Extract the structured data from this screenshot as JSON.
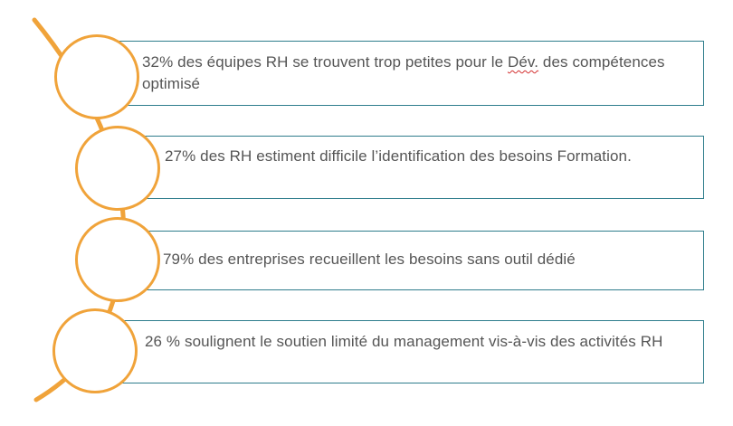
{
  "colors": {
    "accent_orange": "#f0a33a",
    "box_border_teal": "#2e7d8c",
    "text_gray": "#555555",
    "spellcheck_red": "#d32f2f"
  },
  "items": [
    {
      "text_before": "32% des équipes RH se trouvent trop petites pour le ",
      "text_flagged": "Dév.",
      "text_after": " des compétences optimisé"
    },
    {
      "text": "27% des RH estiment difficile l’identification des besoins Formation."
    },
    {
      "text": "79% des entreprises recueillent les besoins sans outil dédié"
    },
    {
      "text": "26 % soulignent le soutien limité du management vis-à-vis des activités RH"
    }
  ]
}
